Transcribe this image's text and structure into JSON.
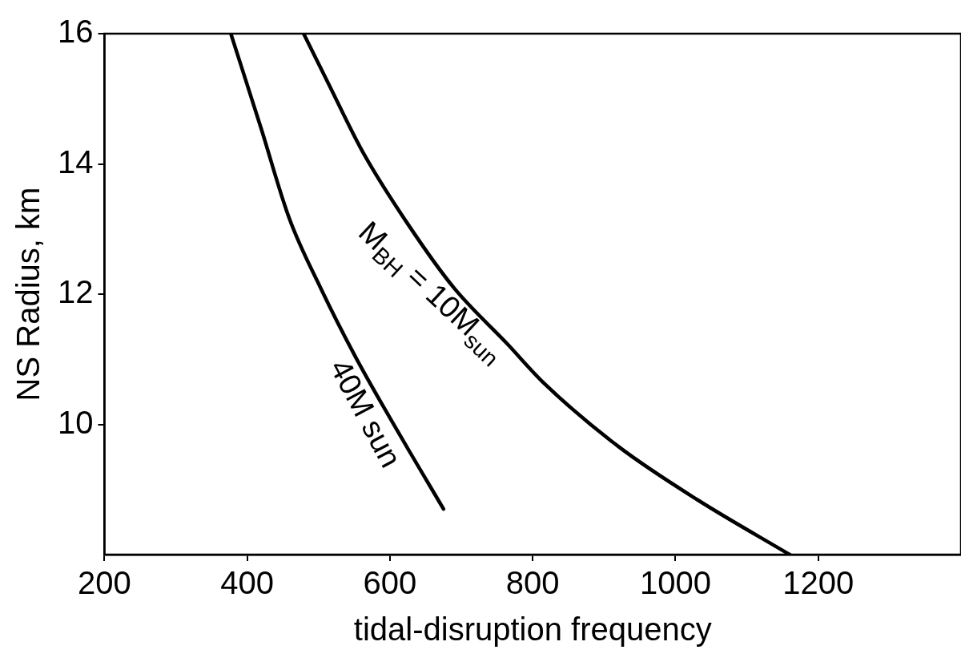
{
  "chart_data": {
    "type": "line",
    "xlabel": "tidal-disruption frequency",
    "ylabel": "NS Radius, km",
    "xlim": [
      200,
      1400
    ],
    "xticks": [
      200,
      400,
      600,
      800,
      1000,
      1200
    ],
    "ylim": [
      8,
      16
    ],
    "yticks": [
      10,
      12,
      14,
      16
    ],
    "grid": false,
    "legend": false,
    "marker": "none",
    "line_style": "solid",
    "series": [
      {
        "color": "#000000",
        "x": [
          377,
          419,
          459,
          503,
          552,
          611,
          675
        ],
        "values": [
          16,
          14.56,
          13.16,
          12.09,
          11.03,
          9.89,
          8.7
        ]
      },
      {
        "color": "#000000",
        "x": [
          479,
          513,
          562,
          626,
          690,
          764,
          816,
          920,
          1031,
          1160
        ],
        "values": [
          16,
          15.25,
          14.18,
          13.06,
          12.09,
          11.24,
          10.63,
          9.66,
          8.84,
          8.0
        ]
      }
    ],
    "annotations": [
      "40M sun",
      "M$_{BH}$ = 10M$_{sun}$"
    ]
  }
}
